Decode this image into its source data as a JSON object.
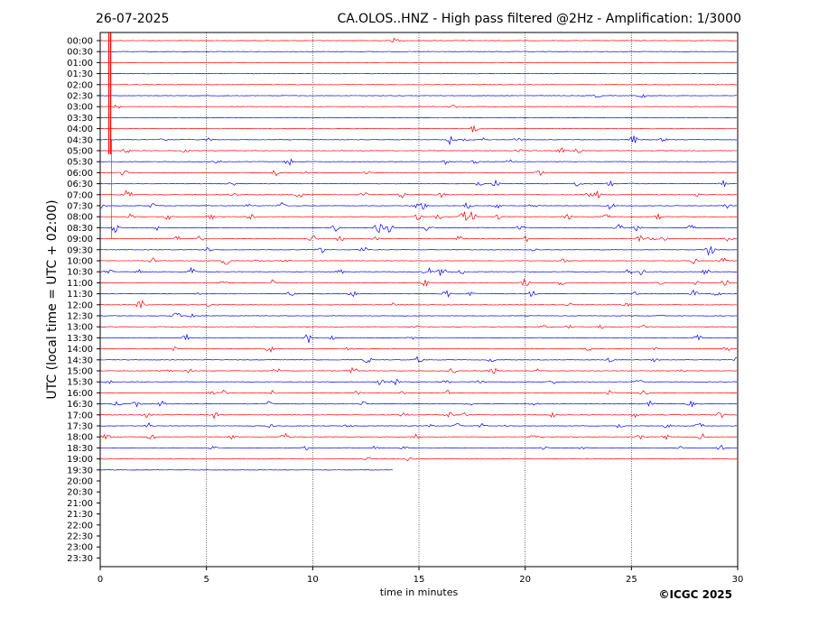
{
  "header": {
    "date": "26-07-2025",
    "title": "CA.OLOS..HNZ - High pass filtered @2Hz - Amplification: 1/3000"
  },
  "footer": {
    "copyright": "©ICGC 2025"
  },
  "chart_data": {
    "type": "line",
    "xlabel": "time in minutes",
    "ylabel": "UTC (local time = UTC + 02:00)",
    "xlim": [
      0,
      30
    ],
    "xticks": [
      "0",
      "5",
      "10",
      "15",
      "20",
      "25",
      "30"
    ],
    "xtick_values": [
      0,
      5,
      10,
      15,
      20,
      25,
      30
    ],
    "grid_x": true,
    "row_labels": [
      "00:00",
      "00:30",
      "01:00",
      "01:30",
      "02:00",
      "02:30",
      "03:00",
      "03:30",
      "04:00",
      "04:30",
      "05:00",
      "05:30",
      "06:00",
      "06:30",
      "07:00",
      "07:30",
      "08:00",
      "08:30",
      "09:00",
      "09:30",
      "10:00",
      "10:30",
      "11:00",
      "11:30",
      "12:00",
      "12:30",
      "13:00",
      "13:30",
      "14:00",
      "14:30",
      "15:00",
      "15:30",
      "16:00",
      "16:30",
      "17:00",
      "17:30",
      "18:00",
      "18:30",
      "19:00",
      "19:30",
      "20:00",
      "20:30",
      "21:00",
      "21:30",
      "22:00",
      "22:30",
      "23:00",
      "23:30"
    ],
    "trace_colors": [
      "#ff0000",
      "#0000ff"
    ],
    "recorded_rows": 40,
    "last_row_end_minute": 13.8,
    "big_event_minute": 0.45,
    "events": [
      [
        [
          13.9,
          3
        ]
      ],
      [],
      [],
      [],
      [],
      [
        [
          23.4,
          2
        ],
        [
          25.5,
          3
        ]
      ],
      [
        [
          0.8,
          2
        ],
        [
          16.6,
          2
        ]
      ],
      [],
      [
        [
          17.6,
          4
        ]
      ],
      [
        [
          2.9,
          3
        ],
        [
          5.1,
          2
        ],
        [
          16.5,
          6
        ],
        [
          17.2,
          2
        ],
        [
          18.1,
          2
        ],
        [
          19.6,
          2
        ],
        [
          25.1,
          5
        ],
        [
          26.5,
          2
        ]
      ],
      [
        [
          1.2,
          3
        ],
        [
          4.0,
          2
        ],
        [
          19.7,
          2
        ],
        [
          21.7,
          3
        ],
        [
          22.5,
          4
        ]
      ],
      [
        [
          5.5,
          2
        ],
        [
          8.9,
          5
        ],
        [
          16.2,
          3
        ],
        [
          17.7,
          4
        ],
        [
          19.3,
          2
        ]
      ],
      [
        [
          1.1,
          4
        ],
        [
          8.2,
          4
        ],
        [
          9.6,
          2
        ],
        [
          12.6,
          2
        ],
        [
          20.7,
          3
        ]
      ],
      [
        [
          6.2,
          3
        ],
        [
          17.8,
          3
        ],
        [
          18.6,
          4
        ],
        [
          22.5,
          4
        ],
        [
          24.0,
          3
        ],
        [
          25.1,
          2
        ],
        [
          29.3,
          4
        ]
      ],
      [
        [
          1.3,
          7
        ],
        [
          6.2,
          3
        ],
        [
          9.4,
          4
        ],
        [
          12.4,
          4
        ],
        [
          14.2,
          4
        ],
        [
          16.1,
          3
        ],
        [
          22.9,
          4
        ],
        [
          23.4,
          4
        ],
        [
          28.1,
          2
        ]
      ],
      [
        [
          0.1,
          4
        ],
        [
          2.5,
          3
        ],
        [
          7.0,
          2
        ],
        [
          8.5,
          4
        ],
        [
          14.9,
          3
        ],
        [
          15.2,
          4
        ],
        [
          17.3,
          4
        ],
        [
          18.7,
          4
        ],
        [
          20.4,
          3
        ],
        [
          24.0,
          4
        ],
        [
          29.5,
          3
        ]
      ],
      [
        [
          1.4,
          3
        ],
        [
          3.2,
          3
        ],
        [
          5.2,
          4
        ],
        [
          7.1,
          3
        ],
        [
          15.0,
          4
        ],
        [
          15.9,
          3
        ],
        [
          17.1,
          6
        ],
        [
          17.5,
          6
        ],
        [
          18.8,
          3
        ],
        [
          22.0,
          3
        ],
        [
          23.8,
          3
        ],
        [
          26.3,
          3
        ]
      ],
      [
        [
          0.7,
          5
        ],
        [
          2.7,
          3
        ],
        [
          11.1,
          5
        ],
        [
          13.1,
          6
        ],
        [
          13.6,
          7
        ],
        [
          15.4,
          3
        ],
        [
          19.8,
          4
        ],
        [
          24.4,
          4
        ],
        [
          25.3,
          4
        ],
        [
          27.8,
          3
        ]
      ],
      [
        [
          3.6,
          3
        ],
        [
          4.7,
          3
        ],
        [
          10.0,
          4
        ],
        [
          11.3,
          5
        ],
        [
          13.0,
          2
        ],
        [
          16.9,
          3
        ],
        [
          20.1,
          3
        ],
        [
          25.4,
          4
        ],
        [
          25.9,
          3
        ],
        [
          26.5,
          3
        ],
        [
          29.6,
          3
        ]
      ],
      [
        [
          5.0,
          3
        ],
        [
          10.4,
          5
        ],
        [
          12.4,
          3
        ],
        [
          20.4,
          2
        ],
        [
          28.7,
          7
        ]
      ],
      [
        [
          2.5,
          3
        ],
        [
          5.9,
          5
        ],
        [
          7.4,
          2
        ],
        [
          8.7,
          2
        ],
        [
          21.8,
          2
        ],
        [
          27.9,
          4
        ],
        [
          29.3,
          4
        ]
      ],
      [
        [
          0.4,
          4
        ],
        [
          1.8,
          3
        ],
        [
          4.3,
          6
        ],
        [
          11.3,
          3
        ],
        [
          15.4,
          6
        ],
        [
          16.1,
          6
        ],
        [
          17.0,
          3
        ],
        [
          24.9,
          3
        ],
        [
          25.5,
          4
        ],
        [
          28.5,
          3
        ]
      ],
      [
        [
          5.8,
          3
        ],
        [
          8.2,
          6
        ],
        [
          15.3,
          4
        ],
        [
          20.0,
          4
        ],
        [
          21.7,
          3
        ],
        [
          26.3,
          2
        ],
        [
          28.0,
          3
        ],
        [
          29.4,
          4
        ]
      ],
      [
        [
          4.6,
          2
        ],
        [
          9.0,
          3
        ],
        [
          11.9,
          3
        ],
        [
          16.3,
          4
        ],
        [
          17.5,
          3
        ],
        [
          20.3,
          4
        ],
        [
          25.2,
          2
        ],
        [
          28.0,
          5
        ],
        [
          29.0,
          3
        ]
      ],
      [
        [
          1.9,
          8
        ],
        [
          5.1,
          2
        ],
        [
          13.8,
          2
        ],
        [
          22.1,
          2
        ],
        [
          24.8,
          2
        ]
      ],
      [
        [
          3.6,
          4
        ],
        [
          4.4,
          4
        ],
        [
          26.3,
          2
        ]
      ],
      [
        [
          14.8,
          3
        ],
        [
          20.9,
          2
        ],
        [
          22.1,
          2
        ],
        [
          23.6,
          2
        ],
        [
          25.5,
          2
        ]
      ],
      [
        [
          4.0,
          4
        ],
        [
          9.8,
          6
        ],
        [
          10.9,
          2
        ],
        [
          14.7,
          2
        ],
        [
          28.1,
          3
        ]
      ],
      [
        [
          3.5,
          2
        ],
        [
          8.0,
          4
        ],
        [
          11.7,
          2
        ],
        [
          23.0,
          2
        ],
        [
          26.1,
          2
        ],
        [
          29.5,
          2
        ]
      ],
      [
        [
          12.6,
          4
        ],
        [
          15.0,
          4
        ],
        [
          18.4,
          2
        ],
        [
          24.0,
          3
        ],
        [
          26.1,
          2
        ],
        [
          30.0,
          3
        ]
      ],
      [
        [
          3.1,
          3
        ],
        [
          4.2,
          2
        ],
        [
          8.3,
          3
        ],
        [
          11.9,
          4
        ],
        [
          16.6,
          3
        ],
        [
          18.5,
          4
        ],
        [
          20.6,
          2
        ],
        [
          27.4,
          2
        ]
      ],
      [
        [
          0.4,
          2
        ],
        [
          13.2,
          4
        ],
        [
          13.9,
          3
        ],
        [
          16.3,
          2
        ],
        [
          17.9,
          2
        ],
        [
          21.3,
          2
        ],
        [
          25.3,
          4
        ]
      ],
      [
        [
          5.2,
          3
        ],
        [
          5.8,
          3
        ],
        [
          8.1,
          3
        ],
        [
          12.1,
          2
        ],
        [
          14.2,
          2
        ],
        [
          16.4,
          3
        ],
        [
          24.0,
          3
        ],
        [
          25.6,
          3
        ]
      ],
      [
        [
          0.8,
          3
        ],
        [
          1.7,
          4
        ],
        [
          2.9,
          3
        ],
        [
          7.9,
          3
        ],
        [
          12.4,
          4
        ],
        [
          17.3,
          3
        ],
        [
          20.4,
          3
        ],
        [
          25.9,
          3
        ],
        [
          27.8,
          3
        ]
      ],
      [
        [
          2.2,
          3
        ],
        [
          3.8,
          3
        ],
        [
          5.4,
          4
        ],
        [
          14.3,
          3
        ],
        [
          16.4,
          3
        ],
        [
          17.1,
          3
        ],
        [
          21.3,
          3
        ],
        [
          25.2,
          3
        ],
        [
          29.2,
          4
        ]
      ],
      [
        [
          2.3,
          3
        ],
        [
          8.0,
          2
        ],
        [
          11.7,
          3
        ],
        [
          15.6,
          2
        ],
        [
          16.8,
          3
        ],
        [
          18.0,
          3
        ],
        [
          19.1,
          3
        ],
        [
          24.4,
          3
        ],
        [
          26.7,
          3
        ],
        [
          28.2,
          4
        ]
      ],
      [
        [
          0.3,
          4
        ],
        [
          2.4,
          4
        ],
        [
          6.2,
          3
        ],
        [
          8.7,
          4
        ],
        [
          14.9,
          3
        ],
        [
          20.4,
          3
        ],
        [
          25.4,
          3
        ],
        [
          26.6,
          3
        ],
        [
          28.3,
          4
        ]
      ],
      [
        [
          5.3,
          2
        ],
        [
          9.7,
          2
        ],
        [
          12.9,
          2
        ],
        [
          14.3,
          2
        ],
        [
          20.9,
          2
        ],
        [
          22.7,
          2
        ],
        [
          27.3,
          2
        ],
        [
          29.2,
          3
        ]
      ],
      [
        [
          12.6,
          2
        ],
        [
          14.5,
          3
        ]
      ],
      []
    ]
  }
}
